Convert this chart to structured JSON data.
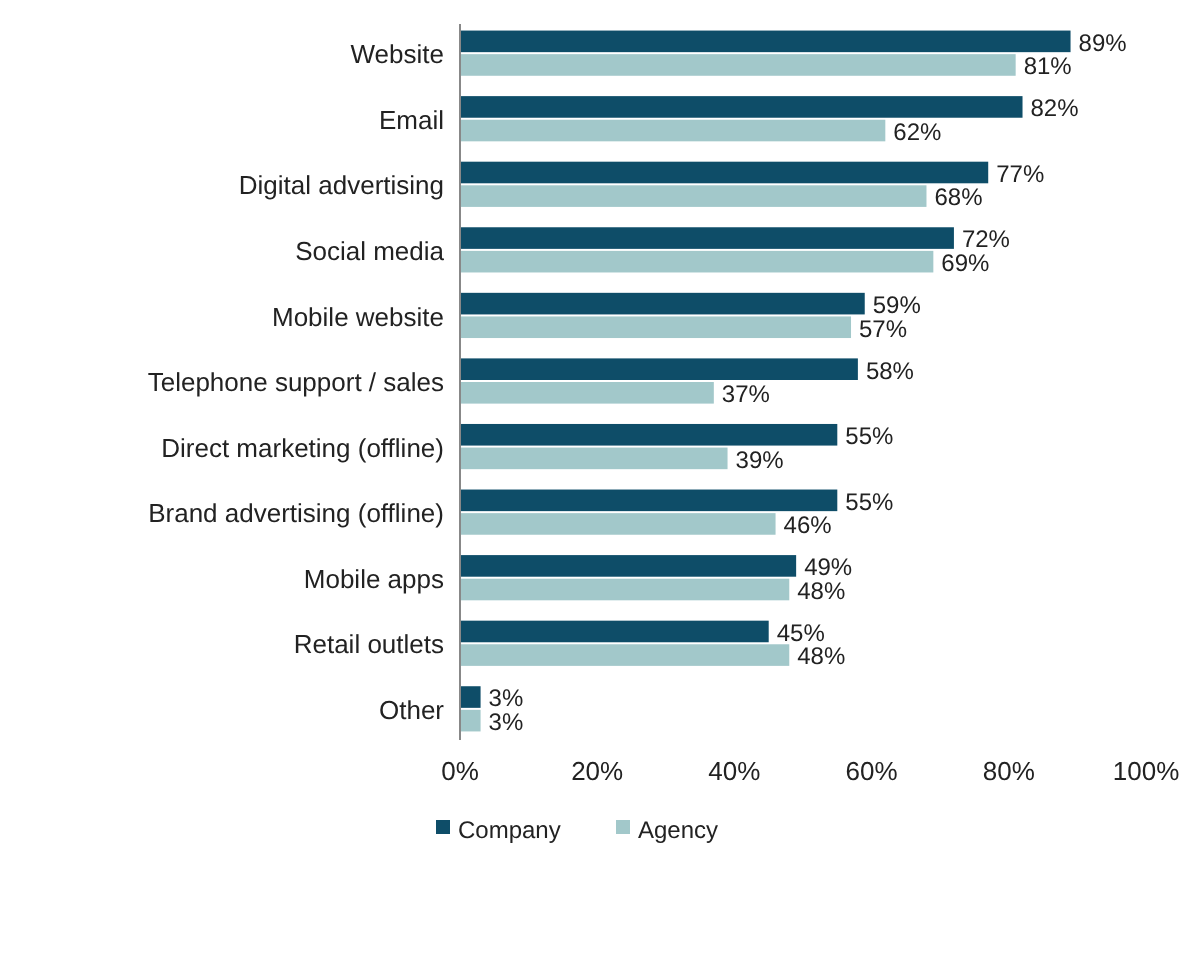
{
  "chart_data": {
    "type": "bar",
    "orientation": "horizontal",
    "categories": [
      "Website",
      "Email",
      "Digital advertising",
      "Social media",
      "Mobile website",
      "Telephone support / sales",
      "Direct marketing (offline)",
      "Brand advertising (offline)",
      "Mobile apps",
      "Retail outlets",
      "Other"
    ],
    "series": [
      {
        "name": "Company",
        "color": "#0e4d68",
        "values": [
          89,
          82,
          77,
          72,
          59,
          58,
          55,
          55,
          49,
          45,
          3
        ],
        "value_labels": [
          "89%",
          "82%",
          "77%",
          "72%",
          "59%",
          "58%",
          "55%",
          "55%",
          "49%",
          "45%",
          "3%"
        ]
      },
      {
        "name": "Agency",
        "color": "#a2c8ca",
        "values": [
          81,
          62,
          68,
          69,
          57,
          37,
          39,
          46,
          48,
          48,
          3
        ],
        "value_labels": [
          "81%",
          "62%",
          "68%",
          "69%",
          "57%",
          "37%",
          "39%",
          "46%",
          "48%",
          "48%",
          "3%"
        ]
      }
    ],
    "xlim": [
      0,
      100
    ],
    "xticks": [
      {
        "value": 0,
        "label": "0%"
      },
      {
        "value": 20,
        "label": "20%"
      },
      {
        "value": 40,
        "label": "40%"
      },
      {
        "value": 60,
        "label": "60%"
      },
      {
        "value": 80,
        "label": "80%"
      },
      {
        "value": 100,
        "label": "100%"
      }
    ],
    "grid": false,
    "legend": "bottom"
  }
}
